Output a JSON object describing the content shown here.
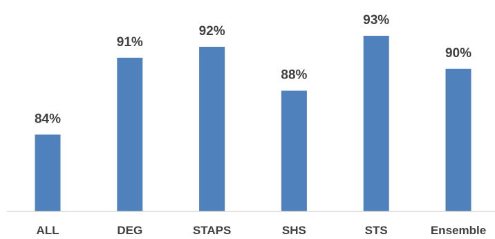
{
  "chart_data": {
    "type": "bar",
    "categories": [
      "ALL",
      "DEG",
      "STAPS",
      "SHS",
      "STS",
      "Ensemble"
    ],
    "values": [
      84,
      91,
      92,
      88,
      93,
      90
    ],
    "data_labels": [
      "84%",
      "91%",
      "92%",
      "88%",
      "93%",
      "90%"
    ],
    "title": "",
    "xlabel": "",
    "ylabel": "",
    "ylim": [
      77,
      94
    ],
    "grid": false,
    "legend": "none",
    "bar_color": "#4f81bd",
    "label_color": "#404040"
  }
}
